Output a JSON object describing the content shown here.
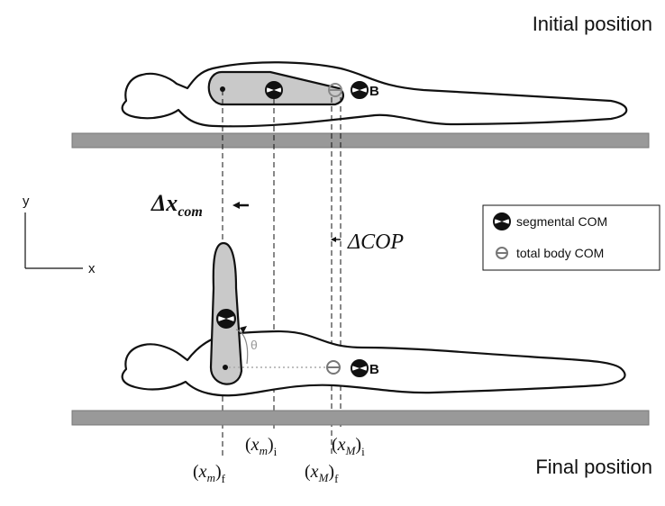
{
  "labels": {
    "initial_position": "Initial position",
    "final_position": "Final position",
    "segment_label_top": "B",
    "segment_label_bottom": "B",
    "delta_x_com_main": "Δx",
    "delta_x_com_sub": "com",
    "delta_cop": "ΔCOP",
    "theta": "θ"
  },
  "axes": {
    "y_label": "y",
    "x_label": "x"
  },
  "legend": {
    "segmental_com": "segmental COM",
    "total_body_com": "total body COM"
  },
  "markers": {
    "xm_i": {
      "open": "(",
      "var": "x",
      "sub": "m",
      "close": ")",
      "tail": "i"
    },
    "xm_f": {
      "open": "(",
      "var": "x",
      "sub": "m",
      "close": ")",
      "tail": "f"
    },
    "xM_i": {
      "open": "(",
      "var": "x",
      "sub": "M",
      "close": ")",
      "tail": "i"
    },
    "xM_f": {
      "open": "(",
      "var": "x",
      "sub": "M",
      "close": ")",
      "tail": "f"
    }
  },
  "colors": {
    "table": "#999999",
    "limb": "#c9c9c9",
    "outline": "#111111",
    "legend_circle_gray": "#777777"
  }
}
